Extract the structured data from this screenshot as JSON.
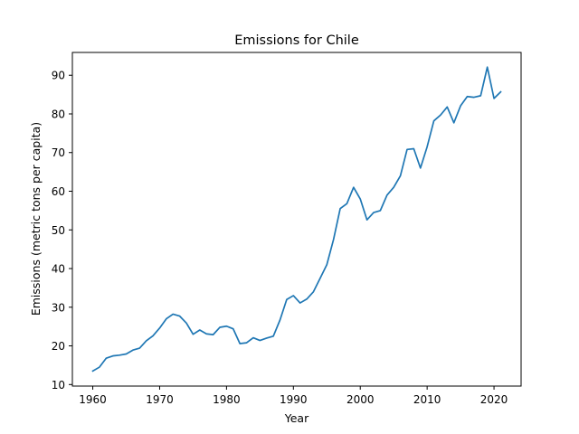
{
  "chart_data": {
    "type": "line",
    "title": "Emissions for Chile",
    "xlabel": "Year",
    "ylabel": "Emissions (metric tons per capita)",
    "xlim": [
      1956.95,
      2024.05
    ],
    "ylim": [
      9.6,
      95.9
    ],
    "xticks": [
      1960,
      1970,
      1980,
      1990,
      2000,
      2010,
      2020
    ],
    "yticks": [
      10,
      20,
      30,
      40,
      50,
      60,
      70,
      80,
      90
    ],
    "grid": false,
    "legend": "none",
    "series": [
      {
        "color": "#1f77b4",
        "x": [
          1960,
          1961,
          1962,
          1963,
          1964,
          1965,
          1966,
          1967,
          1968,
          1969,
          1970,
          1971,
          1972,
          1973,
          1974,
          1975,
          1976,
          1977,
          1978,
          1979,
          1980,
          1981,
          1982,
          1983,
          1984,
          1985,
          1986,
          1987,
          1988,
          1989,
          1990,
          1991,
          1992,
          1993,
          1994,
          1995,
          1996,
          1997,
          1998,
          1999,
          2000,
          2001,
          2002,
          2003,
          2004,
          2005,
          2006,
          2007,
          2008,
          2009,
          2010,
          2011,
          2012,
          2013,
          2014,
          2015,
          2016,
          2017,
          2018,
          2019,
          2020,
          2021
        ],
        "values": [
          13.5,
          14.5,
          16.8,
          17.4,
          17.6,
          17.9,
          18.9,
          19.4,
          21.3,
          22.6,
          24.6,
          27.0,
          28.2,
          27.7,
          25.9,
          23.0,
          24.1,
          23.1,
          22.9,
          24.8,
          25.1,
          24.4,
          20.6,
          20.8,
          22.1,
          21.4,
          22.0,
          22.5,
          26.7,
          32.0,
          33.0,
          31.1,
          32.1,
          34.0,
          37.5,
          41.0,
          47.5,
          55.5,
          56.8,
          61.0,
          58.0,
          52.6,
          54.5,
          55.0,
          59.0,
          61.0,
          64.0,
          70.8,
          71.0,
          66.0,
          71.5,
          78.2,
          79.7,
          81.8,
          77.7,
          82.1,
          84.5,
          84.3,
          84.7,
          92.1,
          84.0,
          85.7
        ]
      }
    ]
  }
}
